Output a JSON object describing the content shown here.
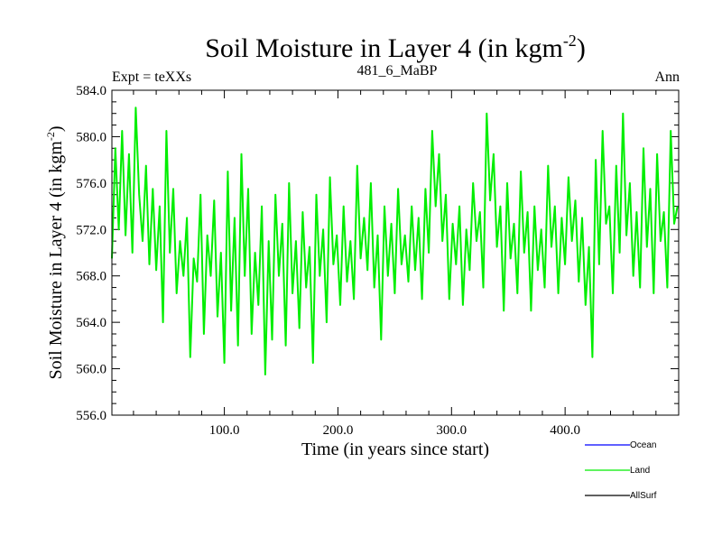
{
  "chart_data": {
    "type": "line",
    "title": "Soil Moisture in Layer 4 (in kgm",
    "title_sup": "-2",
    "title_close": ")",
    "left_label": "Expt = teXXs",
    "subtitle": "481_6_MaBP",
    "right_label": "Ann",
    "xlabel": "Time (in years since start)",
    "ylabel": "Soil Moisture in Layer 4 (in kgm",
    "ylabel_sup": "-2",
    "ylabel_close": ")",
    "xlim": [
      1,
      500
    ],
    "ylim": [
      556,
      584
    ],
    "xticks": [
      100,
      200,
      300,
      400
    ],
    "xtick_labels": [
      "100.0",
      "200.0",
      "300.0",
      "400.0"
    ],
    "yticks": [
      556,
      560,
      564,
      568,
      572,
      576,
      580,
      584
    ],
    "ytick_labels": [
      "556.0",
      "560.0",
      "564.0",
      "568.0",
      "572.0",
      "576.0",
      "580.0",
      "584.0"
    ],
    "legend": [
      {
        "name": "Ocean",
        "color": "#0000ff"
      },
      {
        "name": "Land",
        "color": "#00ee00"
      },
      {
        "name": "AllSurf",
        "color": "#000000"
      }
    ],
    "series": [
      {
        "name": "Land",
        "color": "#00ee00",
        "x": [
          1,
          4,
          7,
          10,
          13,
          16,
          19,
          22,
          25,
          28,
          31,
          34,
          37,
          40,
          43,
          46,
          49,
          52,
          55,
          58,
          61,
          64,
          67,
          70,
          73,
          76,
          79,
          82,
          85,
          88,
          91,
          94,
          97,
          100,
          103,
          106,
          109,
          112,
          115,
          118,
          121,
          124,
          127,
          130,
          133,
          136,
          139,
          142,
          145,
          148,
          151,
          154,
          157,
          160,
          163,
          166,
          169,
          172,
          175,
          178,
          181,
          184,
          187,
          190,
          193,
          196,
          199,
          202,
          205,
          208,
          211,
          214,
          217,
          220,
          223,
          226,
          229,
          232,
          235,
          238,
          241,
          244,
          247,
          250,
          253,
          256,
          259,
          262,
          265,
          268,
          271,
          274,
          277,
          280,
          283,
          286,
          289,
          292,
          295,
          298,
          301,
          304,
          307,
          310,
          313,
          316,
          319,
          322,
          325,
          328,
          331,
          334,
          337,
          340,
          343,
          346,
          349,
          352,
          355,
          358,
          361,
          364,
          367,
          370,
          373,
          376,
          379,
          382,
          385,
          388,
          391,
          394,
          397,
          400,
          403,
          406,
          409,
          412,
          415,
          418,
          421,
          424,
          427,
          430,
          433,
          436,
          439,
          442,
          445,
          448,
          451,
          454,
          457,
          460,
          463,
          466,
          469,
          472,
          475,
          478,
          481,
          484,
          487,
          490,
          493,
          496,
          499
        ],
        "values": [
          569.5,
          579.0,
          572.0,
          580.5,
          571.5,
          578.5,
          570.0,
          582.5,
          575.0,
          571.0,
          577.5,
          569.0,
          575.5,
          568.5,
          574.0,
          564.0,
          580.5,
          570.0,
          575.5,
          566.5,
          571.0,
          568.0,
          573.0,
          561.0,
          569.5,
          567.5,
          575.0,
          563.0,
          571.5,
          568.0,
          574.5,
          564.5,
          570.0,
          560.5,
          577.0,
          565.0,
          573.0,
          562.0,
          578.5,
          568.0,
          575.5,
          563.0,
          570.0,
          565.5,
          574.0,
          559.5,
          571.0,
          562.5,
          575.0,
          568.0,
          572.5,
          562.0,
          576.0,
          566.5,
          571.0,
          563.5,
          573.5,
          567.0,
          570.5,
          560.5,
          575.0,
          568.0,
          572.0,
          564.0,
          576.5,
          569.0,
          571.5,
          565.5,
          574.0,
          567.5,
          571.0,
          566.0,
          577.5,
          569.5,
          573.0,
          568.5,
          576.0,
          567.0,
          571.5,
          562.5,
          574.0,
          568.0,
          572.5,
          566.5,
          575.5,
          569.0,
          571.5,
          567.5,
          574.0,
          568.5,
          573.0,
          566.0,
          575.5,
          570.0,
          580.5,
          574.0,
          578.5,
          571.0,
          575.0,
          566.0,
          572.5,
          569.0,
          574.0,
          565.5,
          572.0,
          568.5,
          576.0,
          571.0,
          573.5,
          567.0,
          582.0,
          574.5,
          578.5,
          570.5,
          574.0,
          565.0,
          576.0,
          569.5,
          572.5,
          566.5,
          577.0,
          570.0,
          573.5,
          565.0,
          574.0,
          568.5,
          572.0,
          567.0,
          577.5,
          570.5,
          574.0,
          566.5,
          573.0,
          569.0,
          576.5,
          571.0,
          574.5,
          567.5,
          573.0,
          565.5,
          570.5,
          561.0,
          578.0,
          569.0,
          580.5,
          572.5,
          574.0,
          566.5,
          577.5,
          570.0,
          582.0,
          571.5,
          576.0,
          568.0,
          573.5,
          567.0,
          579.0,
          570.5,
          575.5,
          566.5,
          578.5,
          571.0,
          573.5,
          567.0,
          580.5,
          572.5,
          574.0
        ]
      }
    ]
  }
}
